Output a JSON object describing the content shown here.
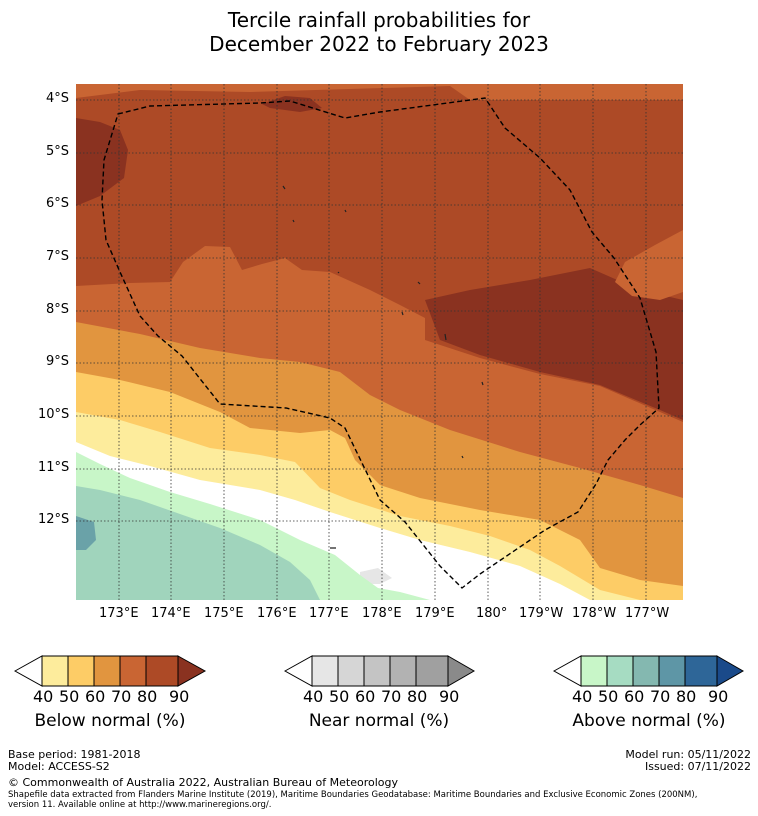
{
  "title_line1": "Tercile rainfall probabilities for",
  "title_line2": "December 2022 to February 2023",
  "map": {
    "lat_labels": [
      "4°S",
      "5°S",
      "6°S",
      "7°S",
      "8°S",
      "9°S",
      "10°S",
      "11°S",
      "12°S"
    ],
    "lon_labels": [
      "173°E",
      "174°E",
      "175°E",
      "176°E",
      "177°E",
      "178°E",
      "179°E",
      "180°",
      "179°W",
      "178°W",
      "177°W"
    ],
    "colors": {
      "below_90": "#8a3220",
      "below_80": "#ad4a26",
      "below_70": "#c96533",
      "below_60": "#e1953f",
      "below_50": "#fdcc66",
      "below_40": "#fdec9c",
      "white": "#ffffff",
      "near_40": "#e6e6e6",
      "above_40": "#c8f6c8",
      "above_50": "#a0d4bc",
      "above_60": "#80b8b0",
      "above_70": "#6aa2a8"
    }
  },
  "legends": [
    {
      "label": "Below normal (%)",
      "ticks": [
        "40",
        "50",
        "60",
        "70",
        "80",
        "90"
      ],
      "colors": [
        "#fdec9c",
        "#fdcc66",
        "#e1953f",
        "#c96533",
        "#ad4a26",
        "#8a3220"
      ]
    },
    {
      "label": "Near normal (%)",
      "ticks": [
        "40",
        "50",
        "60",
        "70",
        "80",
        "90"
      ],
      "colors": [
        "#e6e6e6",
        "#d6d6d6",
        "#c4c4c4",
        "#b2b2b2",
        "#a0a0a0",
        "#8a8a8a"
      ]
    },
    {
      "label": "Above normal (%)",
      "ticks": [
        "40",
        "50",
        "60",
        "70",
        "80",
        "90"
      ],
      "colors": [
        "#c8f6c8",
        "#a6dcc2",
        "#84b8b0",
        "#5e96a6",
        "#2e6698",
        "#1a4a8a"
      ]
    }
  ],
  "footer": {
    "base_period": "Base period: 1981-2018",
    "model": "Model: ACCESS-S2",
    "model_run": "Model run: 05/11/2022",
    "issued": "Issued: 07/11/2022",
    "copyright": "© Commonwealth of Australia 2022, Australian Bureau of Meteorology",
    "shapefile_line1": "Shapefile data extracted from Flanders Marine Institute (2019), Maritime Boundaries Geodatabase: Maritime Boundaries and Exclusive Economic Zones (200NM),",
    "shapefile_line2": "version 11. Available online at http://www.marineregions.org/."
  }
}
